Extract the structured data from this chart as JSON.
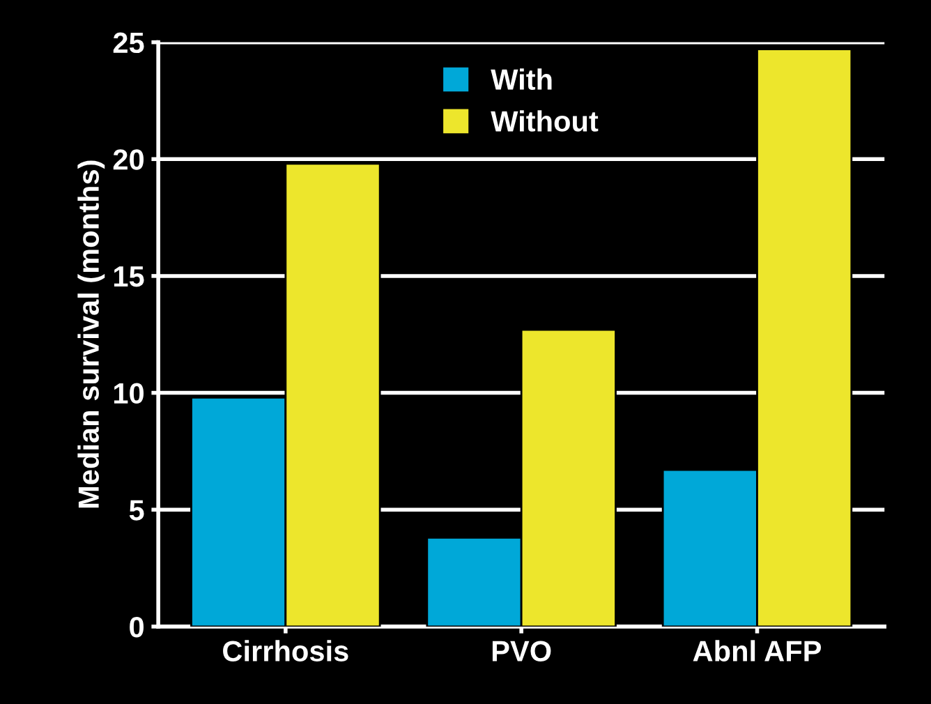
{
  "chart_data": {
    "type": "bar",
    "ylabel": "Median survival (months)",
    "categories": [
      "Cirrhosis",
      "PVO",
      "Abnl AFP"
    ],
    "series": [
      {
        "name": "With",
        "color": "#00a8d8",
        "values": [
          9.8,
          3.8,
          6.7
        ]
      },
      {
        "name": "Without",
        "color": "#ede62c",
        "values": [
          19.8,
          12.7,
          24.7
        ]
      }
    ],
    "ylim": [
      0,
      25
    ],
    "yticks": [
      0,
      5,
      10,
      15,
      20,
      25
    ],
    "grid": "y",
    "legend": "top"
  }
}
